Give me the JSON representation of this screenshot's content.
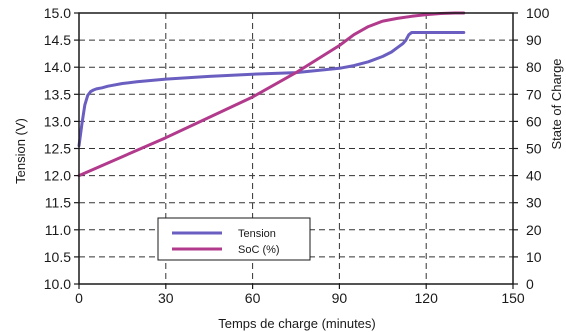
{
  "chart_data": {
    "type": "line",
    "title": "",
    "xlabel": "Temps de charge (minutes)",
    "ylabel_left": "Tension (V)",
    "ylabel_right": "State of Charge",
    "xlim": [
      0,
      150
    ],
    "ylim_left": [
      10.0,
      15.0
    ],
    "ylim_right": [
      0,
      100
    ],
    "x_ticks": [
      "0",
      "30",
      "60",
      "90",
      "120",
      "150"
    ],
    "y_ticks_left": [
      "10.0",
      "10.5",
      "11.0",
      "11.5",
      "12.0",
      "12.5",
      "13.0",
      "13.5",
      "14.0",
      "14.5",
      "15.0"
    ],
    "y_ticks_right": [
      "0",
      "10",
      "20",
      "30",
      "40",
      "50",
      "60",
      "70",
      "80",
      "90",
      "100"
    ],
    "grid": true,
    "legend_position": "bottom-left",
    "series": [
      {
        "name": "Tension",
        "axis": "left",
        "color": "#6a5fc0",
        "x": [
          0,
          1,
          2,
          3,
          4,
          5,
          6,
          8,
          10,
          15,
          20,
          30,
          45,
          60,
          75,
          90,
          95,
          100,
          105,
          108,
          110,
          112,
          113,
          114,
          115,
          118,
          120,
          125,
          130,
          133
        ],
        "y": [
          12.55,
          12.95,
          13.3,
          13.48,
          13.55,
          13.58,
          13.6,
          13.62,
          13.65,
          13.7,
          13.73,
          13.78,
          13.83,
          13.87,
          13.9,
          13.98,
          14.03,
          14.1,
          14.2,
          14.28,
          14.36,
          14.44,
          14.5,
          14.6,
          14.64,
          14.64,
          14.64,
          14.64,
          14.64,
          14.64
        ]
      },
      {
        "name": "SoC (%)",
        "axis": "right",
        "color": "#b23a8c",
        "x": [
          0,
          30,
          60,
          75,
          90,
          95,
          100,
          105,
          110,
          115,
          120,
          125,
          130,
          133
        ],
        "y": [
          40,
          54,
          69,
          78,
          88,
          92,
          95,
          97,
          98,
          98.8,
          99.4,
          99.8,
          100,
          100
        ]
      }
    ]
  }
}
